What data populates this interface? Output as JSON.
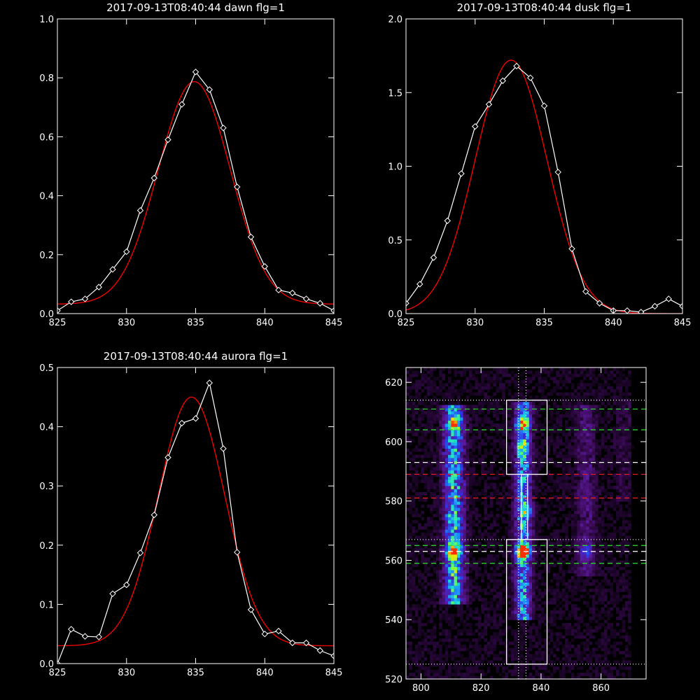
{
  "chart_data": [
    {
      "type": "line",
      "title": "2017-09-13T08:40:44 dawn flg=1",
      "xlim": [
        825,
        845
      ],
      "ylim": [
        0,
        1.0
      ],
      "xticks": [
        825,
        830,
        835,
        840,
        845
      ],
      "xtick_labels": [
        "825",
        "830",
        "835",
        "840",
        "845"
      ],
      "yticks": [
        0,
        0.2,
        0.4,
        0.6,
        0.8,
        1.0
      ],
      "ytick_labels": [
        "0.0",
        "0.2",
        "0.4",
        "0.6",
        "0.8",
        "1.0"
      ],
      "colors": {
        "data": "#ffffff",
        "fit": "#ff0000"
      },
      "series": [
        {
          "role": "data",
          "marker": "diamond",
          "x": [
            825,
            826,
            827,
            828,
            829,
            830,
            831,
            832,
            833,
            834,
            835,
            836,
            837,
            838,
            839,
            840,
            841,
            842,
            843,
            844,
            845
          ],
          "y": [
            0.01,
            0.04,
            0.05,
            0.09,
            0.15,
            0.21,
            0.35,
            0.46,
            0.59,
            0.71,
            0.82,
            0.76,
            0.63,
            0.43,
            0.26,
            0.16,
            0.08,
            0.07,
            0.05,
            0.035,
            0.01
          ]
        },
        {
          "role": "fit",
          "kind": "gaussian",
          "amplitude": 0.755,
          "center": 834.9,
          "sigma": 2.6,
          "offset": 0.032
        }
      ]
    },
    {
      "type": "line",
      "title": "2017-09-13T08:40:44 dusk flg=1",
      "xlim": [
        825,
        845
      ],
      "ylim": [
        0,
        2.0
      ],
      "xticks": [
        825,
        830,
        835,
        840,
        845
      ],
      "xtick_labels": [
        "825",
        "830",
        "835",
        "840",
        "845"
      ],
      "yticks": [
        0,
        0.5,
        1.0,
        1.5,
        2.0
      ],
      "ytick_labels": [
        "0.0",
        "0.5",
        "1.0",
        "1.5",
        "2.0"
      ],
      "colors": {
        "data": "#ffffff",
        "fit": "#ff0000"
      },
      "series": [
        {
          "role": "data",
          "marker": "diamond",
          "x": [
            825,
            826,
            827,
            828,
            829,
            830,
            831,
            832,
            833,
            834,
            835,
            836,
            837,
            838,
            839,
            840,
            841,
            842,
            843,
            844,
            845
          ],
          "y": [
            0.07,
            0.2,
            0.38,
            0.63,
            0.95,
            1.27,
            1.42,
            1.58,
            1.68,
            1.6,
            1.41,
            0.96,
            0.44,
            0.15,
            0.07,
            0.02,
            0.02,
            0.01,
            0.05,
            0.1,
            0.05
          ]
        },
        {
          "role": "fit",
          "kind": "gaussian",
          "amplitude": 1.72,
          "center": 832.6,
          "sigma": 2.6,
          "offset": 0.0
        }
      ]
    },
    {
      "type": "line",
      "title": "2017-09-13T08:40:44 aurora flg=1",
      "xlim": [
        825,
        845
      ],
      "ylim": [
        0,
        0.5
      ],
      "xticks": [
        825,
        830,
        835,
        840,
        845
      ],
      "xtick_labels": [
        "825",
        "830",
        "835",
        "840",
        "845"
      ],
      "yticks": [
        0,
        0.1,
        0.2,
        0.3,
        0.4,
        0.5
      ],
      "ytick_labels": [
        "0.0",
        "0.1",
        "0.2",
        "0.3",
        "0.4",
        "0.5"
      ],
      "colors": {
        "data": "#ffffff",
        "fit": "#ff0000"
      },
      "series": [
        {
          "role": "data",
          "marker": "diamond",
          "x": [
            825,
            826,
            827,
            828,
            829,
            830,
            831,
            832,
            833,
            834,
            835,
            836,
            837,
            838,
            839,
            840,
            841,
            842,
            843,
            844,
            845
          ],
          "y": [
            0.0,
            0.058,
            0.046,
            0.045,
            0.118,
            0.133,
            0.187,
            0.251,
            0.348,
            0.406,
            0.414,
            0.474,
            0.363,
            0.188,
            0.091,
            0.05,
            0.055,
            0.035,
            0.035,
            0.022,
            0.013
          ]
        },
        {
          "role": "fit",
          "kind": "gaussian",
          "amplitude": 0.42,
          "center": 834.7,
          "sigma": 2.4,
          "offset": 0.03
        }
      ]
    },
    {
      "type": "heatmap",
      "title": "",
      "xlim": [
        795,
        875
      ],
      "ylim": [
        520,
        625
      ],
      "xticks": [
        800,
        820,
        840,
        860
      ],
      "xtick_labels": [
        "800",
        "820",
        "840",
        "860"
      ],
      "yticks": [
        520,
        540,
        560,
        580,
        600,
        620
      ],
      "ytick_labels": [
        "520",
        "540",
        "560",
        "580",
        "600",
        "620"
      ],
      "colormap": [
        "#000000",
        "#3a0a55",
        "#5b1aa0",
        "#2f2fe0",
        "#1f8fff",
        "#19e0d0",
        "#7aff40",
        "#ffe000",
        "#ff3000"
      ],
      "columns": [
        {
          "x_center": 811,
          "x_sigma": 2.2,
          "y_range": [
            545,
            612
          ],
          "peak": 0.5
        },
        {
          "x_center": 834,
          "x_sigma": 1.8,
          "y_range": [
            540,
            613
          ],
          "peak": 0.45
        },
        {
          "x_center": 855,
          "x_sigma": 2.2,
          "y_range": [
            555,
            612
          ],
          "peak": 0.13
        },
        {
          "x_center": 868,
          "x_sigma": 2.2,
          "y_range": [
            580,
            615
          ],
          "peak": 0.05
        }
      ],
      "hotspots": [
        {
          "x": 811,
          "y": 563,
          "peak": 0.6
        },
        {
          "x": 811,
          "y": 606,
          "peak": 0.4
        },
        {
          "x": 834,
          "y": 563,
          "peak": 1.0
        },
        {
          "x": 834,
          "y": 606,
          "peak": 0.55
        },
        {
          "x": 834,
          "y": 598,
          "peak": 0.35
        },
        {
          "x": 835,
          "y": 577,
          "peak": 0.3
        },
        {
          "x": 855,
          "y": 563,
          "peak": 0.25
        }
      ],
      "boxes": [
        {
          "x0": 828.5,
          "x1": 842,
          "y0": 589,
          "y1": 614,
          "color": "#ffffff"
        },
        {
          "x0": 833.5,
          "x1": 835.5,
          "y0": 567,
          "y1": 589,
          "color": "#ffffff"
        },
        {
          "x0": 828.5,
          "x1": 842,
          "y0": 525,
          "y1": 567,
          "color": "#ffffff"
        }
      ],
      "hlines": [
        {
          "y": 614,
          "color": "#ffffff",
          "style": "dotted"
        },
        {
          "y": 611,
          "color": "#33dd33",
          "style": "dashed"
        },
        {
          "y": 604,
          "color": "#33dd33",
          "style": "dashed"
        },
        {
          "y": 593,
          "color": "#ffffff",
          "style": "dashed"
        },
        {
          "y": 589,
          "color": "#ee2222",
          "style": "dashed"
        },
        {
          "y": 581,
          "color": "#ee2222",
          "style": "dashed"
        },
        {
          "y": 567,
          "color": "#ffffff",
          "style": "dotted"
        },
        {
          "y": 565,
          "color": "#33dd33",
          "style": "dashed"
        },
        {
          "y": 563,
          "color": "#ffffff",
          "style": "dashed"
        },
        {
          "y": 559,
          "color": "#33dd33",
          "style": "dashed"
        },
        {
          "y": 525,
          "color": "#ffffff",
          "style": "dotted"
        }
      ],
      "vlines": [
        {
          "x": 832.5,
          "color": "#ffffff",
          "style": "dotted"
        },
        {
          "x": 835,
          "color": "#ffffff",
          "style": "dotted"
        }
      ]
    }
  ]
}
